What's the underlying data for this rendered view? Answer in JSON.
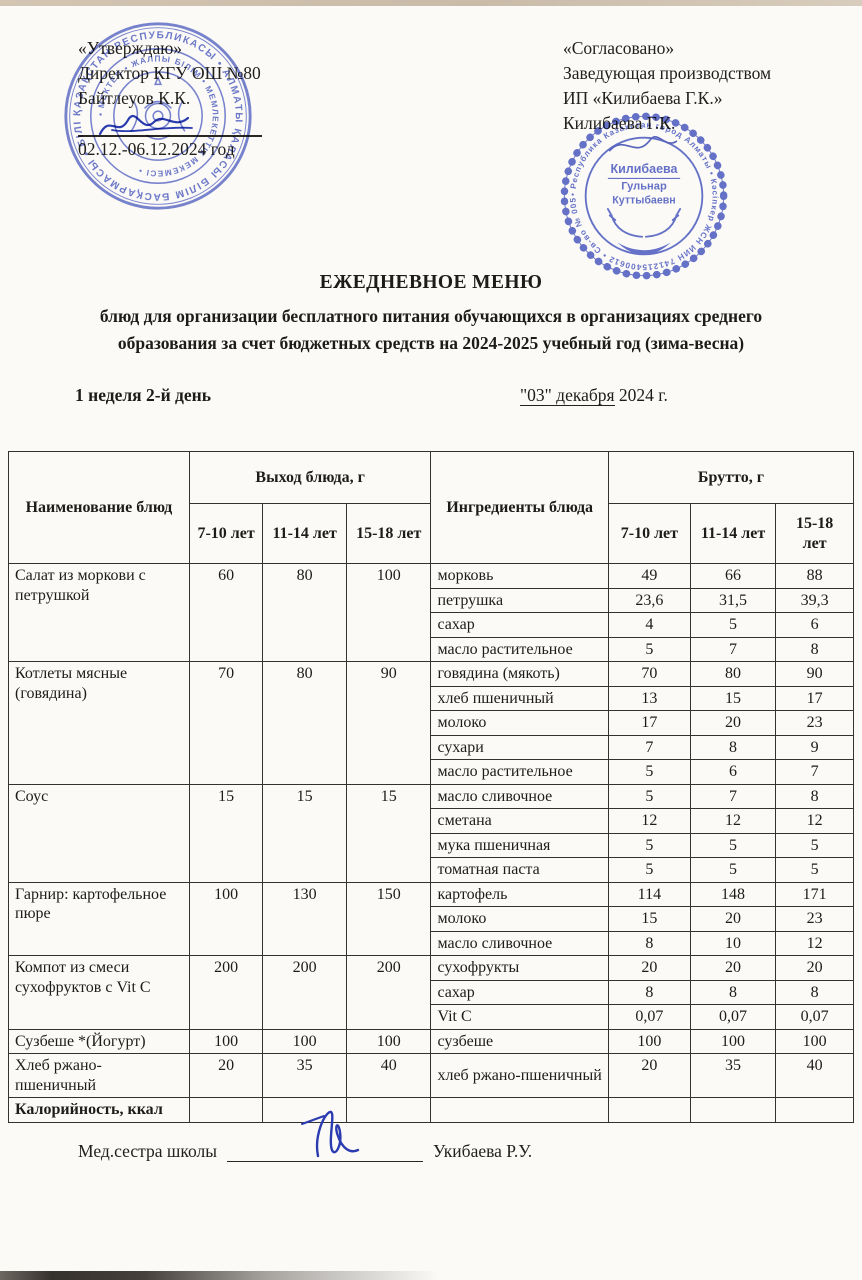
{
  "header": {
    "left": {
      "approve": "«Утверждаю»",
      "director": "Директор КГУ ОШ №80",
      "name": "Байтлеуов К.К.",
      "period": "02.12.-06.12.2024 год"
    },
    "right": {
      "agreed": "«Согласовано»",
      "role": "Заведующая производством",
      "company": "ИП «Килибаева Г.К.»",
      "name": "Килибаева Г.К."
    }
  },
  "stamps": {
    "school": {
      "outer_text": "ҚАЗАҚСТАН РЕСПУБЛИКАСЫ • АЛМАТЫ ҚАЛАСЫ БІЛІМ БАСҚАРМАСЫ • БІЛІМ БЕРУ •",
      "inner_text": "• МЕКТЕП • ЖАЛПЫ БІЛІМ • МЕМЛЕКЕТТІК МЕКЕМЕСІ •",
      "color": "#4656c2"
    },
    "vendor": {
      "ring_text": "• Республика Казахстан город Алматы • Кәсіпкер ЖСН ИИН 741215400612 • Св-во № 0053079",
      "center_line1": "Килибаева",
      "center_line2": "Гульнар",
      "center_line3": "Куттыбаевн",
      "color": "#3c4cc0"
    }
  },
  "title": "ЕЖЕДНЕВНОЕ МЕНЮ",
  "subtitle_line1": "блюд для организации бесплатного питания обучающихся в организациях среднего",
  "subtitle_line2": "образования за счет бюджетных средств на 2024-2025 учебный год (зима-весна)",
  "week_day": "1 неделя 2-й день",
  "date": {
    "underlined": "\"03\" декабря",
    "rest": " 2024 г."
  },
  "table": {
    "headers": {
      "dish": "Наименование блюд",
      "output_group": "Выход блюда, г",
      "ingredients": "Ингредиенты блюда",
      "brutto_group": "Брутто, г",
      "age1": "7-10 лет",
      "age2": "11-14 лет",
      "age3": "15-18 лет"
    },
    "rows": [
      {
        "name": "Салат из моркови с петрушкой",
        "out": [
          "60",
          "80",
          "100"
        ],
        "ingredients": [
          {
            "name": "морковь",
            "values": [
              "49",
              "66",
              "88"
            ]
          },
          {
            "name": "петрушка",
            "values": [
              "23,6",
              "31,5",
              "39,3"
            ]
          },
          {
            "name": "сахар",
            "values": [
              "4",
              "5",
              "6"
            ]
          },
          {
            "name": "масло растительное",
            "values": [
              "5",
              "7",
              "8"
            ]
          }
        ]
      },
      {
        "name": "Котлеты мясные (говядина)",
        "out": [
          "70",
          "80",
          "90"
        ],
        "ingredients": [
          {
            "name": "говядина (мякоть)",
            "values": [
              "70",
              "80",
              "90"
            ]
          },
          {
            "name": "хлеб пшеничный",
            "values": [
              "13",
              "15",
              "17"
            ]
          },
          {
            "name": "молоко",
            "values": [
              "17",
              "20",
              "23"
            ]
          },
          {
            "name": "сухари",
            "values": [
              "7",
              "8",
              "9"
            ]
          },
          {
            "name": "масло растительное",
            "values": [
              "5",
              "6",
              "7"
            ]
          }
        ]
      },
      {
        "name": "Соус",
        "out": [
          "15",
          "15",
          "15"
        ],
        "ingredients": [
          {
            "name": "масло сливочное",
            "values": [
              "5",
              "7",
              "8"
            ]
          },
          {
            "name": "сметана",
            "values": [
              "12",
              "12",
              "12"
            ]
          },
          {
            "name": "мука пшеничная",
            "values": [
              "5",
              "5",
              "5"
            ]
          },
          {
            "name": "томатная паста",
            "values": [
              "5",
              "5",
              "5"
            ]
          }
        ]
      },
      {
        "name": "Гарнир:  картофельное пюре",
        "out": [
          "100",
          "130",
          "150"
        ],
        "ingredients": [
          {
            "name": "картофель",
            "values": [
              "114",
              "148",
              "171"
            ]
          },
          {
            "name": "молоко",
            "values": [
              "15",
              "20",
              "23"
            ]
          },
          {
            "name": "масло сливочное",
            "values": [
              "8",
              "10",
              "12"
            ]
          }
        ]
      },
      {
        "name": "Компот из смеси сухофруктов с Vit C",
        "out": [
          "200",
          "200",
          "200"
        ],
        "ingredients": [
          {
            "name": "сухофрукты",
            "values": [
              "20",
              "20",
              "20"
            ]
          },
          {
            "name": "сахар",
            "values": [
              "8",
              "8",
              "8"
            ]
          },
          {
            "name": "Vit C",
            "values": [
              "0,07",
              "0,07",
              "0,07"
            ]
          }
        ]
      },
      {
        "name": "Сузбеше *(Йогурт)",
        "out": [
          "100",
          "100",
          "100"
        ],
        "ingredients": [
          {
            "name": "сузбеше",
            "values": [
              "100",
              "100",
              "100"
            ]
          }
        ]
      },
      {
        "name": "Хлеб ржано-пшеничный",
        "out": [
          "20",
          "35",
          "40"
        ],
        "ingredients": [
          {
            "name": "хлеб ржано-пшеничный",
            "values": [
              "20",
              "35",
              "40"
            ]
          }
        ]
      },
      {
        "name": "Калорийность, ккал",
        "bold": true,
        "out": [
          "",
          "",
          ""
        ],
        "ingredients": [
          {
            "name": "",
            "values": [
              "",
              "",
              ""
            ]
          }
        ]
      }
    ]
  },
  "footer": {
    "label": "Мед.сестра школы",
    "signer": "Укибаева Р.У."
  }
}
